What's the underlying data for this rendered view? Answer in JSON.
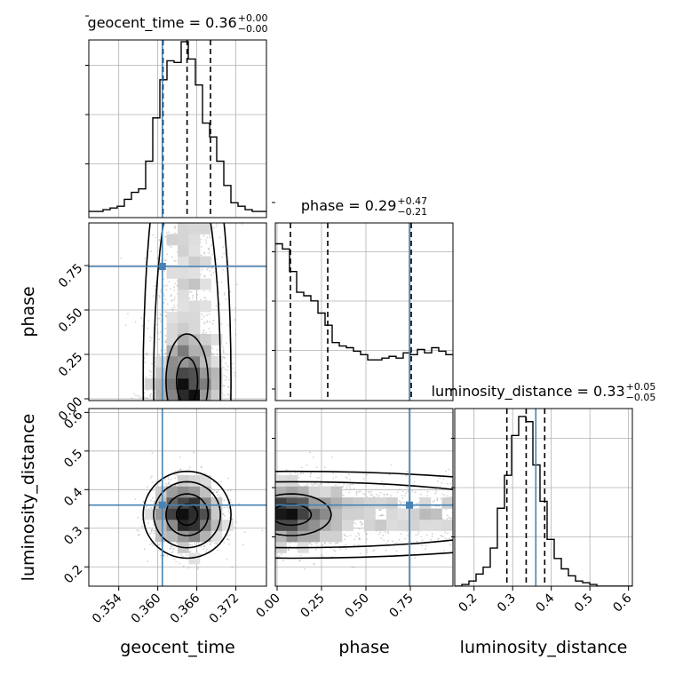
{
  "chart_data": {
    "type": "corner",
    "parameters": [
      "geocent_time",
      "phase",
      "luminosity_distance"
    ],
    "axis_labels": [
      "geocent_time",
      "phase",
      "luminosity_distance"
    ],
    "titles": [
      {
        "param": "geocent_time",
        "prefix": "geocent_time = ",
        "median": "0.36",
        "plus": "+0.00",
        "minus": "−0.00"
      },
      {
        "param": "phase",
        "prefix": "phase = ",
        "median": "0.29",
        "plus": "+0.47",
        "minus": "−0.21"
      },
      {
        "param": "luminosity_distance",
        "prefix": "luminosity_distance = ",
        "median": "0.33",
        "plus": "+0.05",
        "minus": "−0.05"
      }
    ],
    "ranges": {
      "geocent_time": [
        0.3494,
        0.3767
      ],
      "phase": [
        -0.01,
        0.99
      ],
      "luminosity_distance": [
        0.15,
        0.61
      ]
    },
    "ticks": {
      "geocent_time": {
        "values": [
          0.354,
          0.36,
          0.366,
          0.372
        ],
        "labels": [
          "0.354",
          "0.360",
          "0.366",
          "0.372"
        ]
      },
      "phase": {
        "values": [
          0.0,
          0.25,
          0.5,
          0.75
        ],
        "labels": [
          "0.00",
          "0.25",
          "0.50",
          "0.75"
        ]
      },
      "luminosity_distance": {
        "values": [
          0.2,
          0.3,
          0.4,
          0.5,
          0.6
        ],
        "labels": [
          "0.2",
          "0.3",
          "0.4",
          "0.5",
          "0.6"
        ]
      }
    },
    "truths": {
      "geocent_time": 0.3607,
      "phase": 0.745,
      "luminosity_distance": 0.36
    },
    "quantiles": {
      "geocent_time": [
        0.3608,
        0.3645,
        0.3681
      ],
      "phase": [
        0.075,
        0.285,
        0.755
      ],
      "luminosity_distance": [
        0.285,
        0.335,
        0.383
      ]
    },
    "histograms": {
      "geocent_time": [
        0.01,
        0.01,
        0.02,
        0.03,
        0.04,
        0.08,
        0.12,
        0.14,
        0.3,
        0.55,
        0.77,
        0.88,
        0.87,
        0.99,
        0.89,
        0.74,
        0.52,
        0.44,
        0.3,
        0.16,
        0.06,
        0.04,
        0.02,
        0.01,
        0.01
      ],
      "phase": [
        0.9,
        0.87,
        0.74,
        0.62,
        0.6,
        0.57,
        0.5,
        0.43,
        0.33,
        0.31,
        0.3,
        0.28,
        0.26,
        0.23,
        0.23,
        0.24,
        0.25,
        0.24,
        0.27,
        0.26,
        0.29,
        0.27,
        0.3,
        0.28,
        0.26
      ],
      "luminosity_distance": [
        0.0,
        0.01,
        0.03,
        0.07,
        0.11,
        0.22,
        0.45,
        0.64,
        0.87,
        0.98,
        0.95,
        0.7,
        0.49,
        0.27,
        0.16,
        0.1,
        0.06,
        0.03,
        0.02,
        0.01,
        0.0,
        0.0,
        0.0,
        0.0,
        0.0
      ]
    },
    "colors": {
      "truth": "#4682b4",
      "hist": "#000000",
      "grid": "#b0b0b0",
      "scatter": "#808080"
    },
    "grid": true
  }
}
